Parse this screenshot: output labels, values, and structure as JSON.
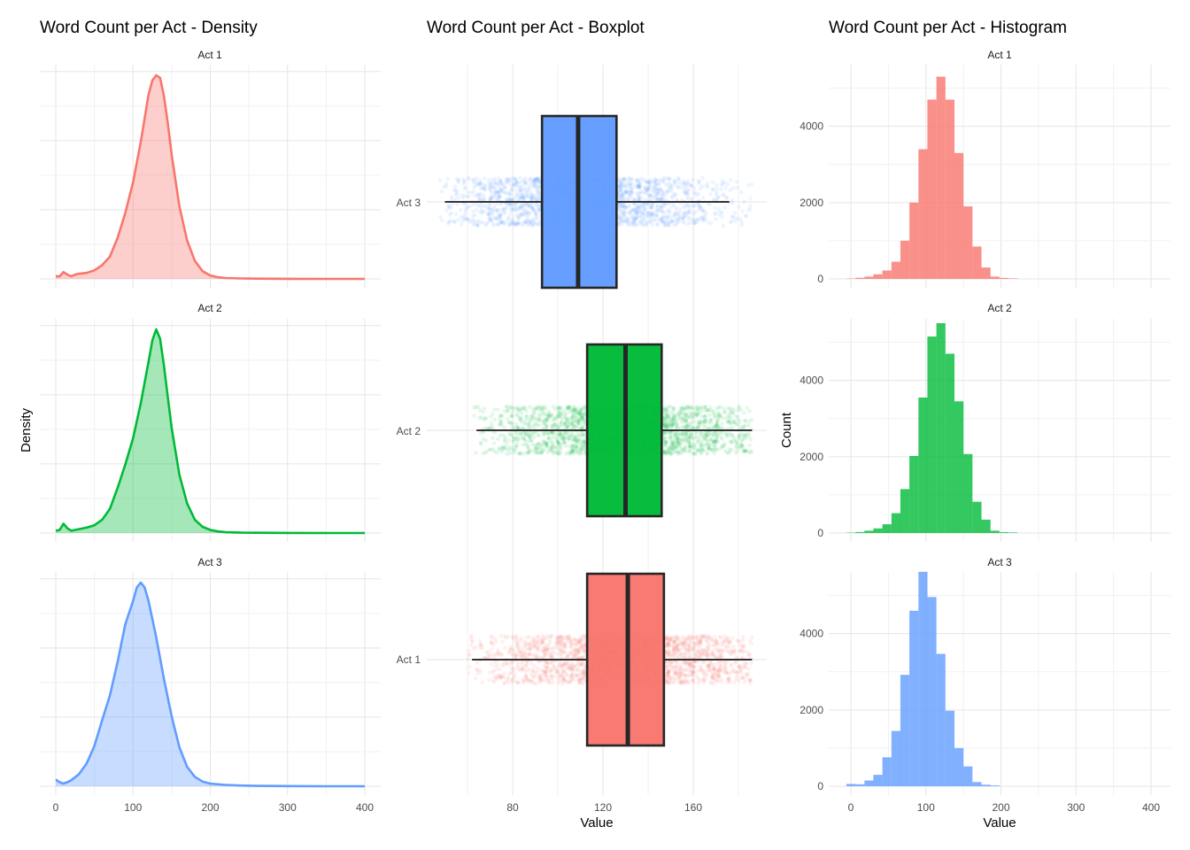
{
  "chart_data": [
    {
      "type": "area",
      "title": "Word Count per Act - Density",
      "xlabel": "",
      "ylabel": "Density",
      "xlim": [
        0,
        400
      ],
      "x_ticks": [
        0,
        100,
        200,
        300,
        400
      ],
      "y_ticks": [],
      "grid": true,
      "facets": [
        {
          "label": "Act 1",
          "color": "#F8766D",
          "x": [
            0,
            5,
            10,
            15,
            20,
            25,
            30,
            40,
            50,
            60,
            70,
            80,
            90,
            100,
            110,
            120,
            125,
            130,
            135,
            140,
            145,
            150,
            160,
            170,
            180,
            190,
            200,
            210,
            220,
            240,
            260,
            300,
            350,
            400
          ],
          "density": [
            0.0003,
            0.0003,
            0.0008,
            0.0005,
            0.0003,
            0.0005,
            0.0006,
            0.0007,
            0.001,
            0.0016,
            0.0026,
            0.0048,
            0.0077,
            0.0113,
            0.016,
            0.0215,
            0.0232,
            0.0238,
            0.0235,
            0.0214,
            0.0182,
            0.0145,
            0.0085,
            0.0045,
            0.0021,
            0.0009,
            0.0004,
            0.0002,
            0.0001,
            5e-05,
            3e-05,
            1e-05,
            0,
            0
          ]
        },
        {
          "label": "Act 2",
          "color": "#00BA38",
          "x": [
            0,
            5,
            10,
            15,
            20,
            25,
            30,
            40,
            50,
            60,
            70,
            80,
            90,
            100,
            110,
            120,
            125,
            130,
            135,
            140,
            145,
            150,
            160,
            170,
            180,
            190,
            200,
            210,
            220,
            240,
            260,
            300,
            350,
            400
          ],
          "density": [
            0.0003,
            0.0004,
            0.0012,
            0.0006,
            0.0003,
            0.0004,
            0.0005,
            0.0007,
            0.001,
            0.0017,
            0.0031,
            0.0058,
            0.0088,
            0.0122,
            0.0167,
            0.022,
            0.0248,
            0.0262,
            0.025,
            0.0216,
            0.0175,
            0.0135,
            0.0075,
            0.0038,
            0.0017,
            0.0008,
            0.0004,
            0.0002,
            0.0001,
            5e-05,
            3e-05,
            1e-05,
            0,
            0
          ]
        },
        {
          "label": "Act 3",
          "color": "#619CFF",
          "x": [
            0,
            5,
            10,
            15,
            20,
            30,
            40,
            50,
            60,
            70,
            80,
            90,
            100,
            105,
            110,
            115,
            120,
            130,
            140,
            150,
            160,
            170,
            180,
            190,
            200,
            220,
            240,
            260,
            300,
            350,
            400
          ],
          "density": [
            0.001,
            0.0006,
            0.0004,
            0.0006,
            0.0009,
            0.0018,
            0.0034,
            0.006,
            0.0098,
            0.0135,
            0.0185,
            0.0241,
            0.0276,
            0.0296,
            0.0303,
            0.0296,
            0.0276,
            0.0222,
            0.016,
            0.0104,
            0.0058,
            0.0029,
            0.0014,
            0.0007,
            0.0004,
            0.0002,
            0.0001,
            5e-05,
            2e-05,
            0,
            0
          ]
        }
      ]
    },
    {
      "type": "box",
      "title": "Word Count per Act - Boxplot",
      "xlabel": "Value",
      "ylabel": "",
      "xlim": [
        47,
        189
      ],
      "x_ticks": [
        80,
        120,
        160
      ],
      "categories": [
        "Act 3",
        "Act 2",
        "Act 1"
      ],
      "grid": true,
      "boxes": [
        {
          "label": "Act 3",
          "color": "#619CFF",
          "whisker_low": 50,
          "q1": 93,
          "median": 109,
          "q3": 126,
          "whisker_high": 176,
          "jitter_min": 47,
          "jitter_max": 186
        },
        {
          "label": "Act 2",
          "color": "#00BA38",
          "whisker_low": 64,
          "q1": 113,
          "median": 130,
          "q3": 146,
          "whisker_high": 186,
          "jitter_min": 63,
          "jitter_max": 186
        },
        {
          "label": "Act 1",
          "color": "#F8766D",
          "whisker_low": 62,
          "q1": 113,
          "median": 131,
          "q3": 147,
          "whisker_high": 186,
          "jitter_min": 60,
          "jitter_max": 186
        }
      ]
    },
    {
      "type": "bar",
      "title": "Word Count per Act - Histogram",
      "xlabel": "Value",
      "ylabel": "Count",
      "xlim": [
        -20,
        420
      ],
      "x_ticks": [
        0,
        100,
        200,
        300,
        400
      ],
      "y_ticks": [
        0,
        2000,
        4000
      ],
      "bin_width": 12,
      "bin_centers": [
        0,
        12,
        24,
        36,
        48,
        60,
        72,
        84,
        96,
        108,
        120,
        132,
        144,
        156,
        168,
        180,
        192,
        204,
        216,
        228,
        240
      ],
      "grid": true,
      "facets": [
        {
          "label": "Act 1",
          "color": "#F8766D",
          "counts": [
            10,
            30,
            60,
            120,
            220,
            450,
            1000,
            2000,
            3400,
            4700,
            5300,
            4700,
            3300,
            1900,
            850,
            300,
            60,
            25,
            15,
            0,
            0
          ]
        },
        {
          "label": "Act 2",
          "color": "#00BA38",
          "counts": [
            10,
            25,
            60,
            120,
            230,
            520,
            1150,
            2020,
            3550,
            5150,
            5500,
            4700,
            3450,
            2070,
            820,
            350,
            60,
            20,
            15,
            0,
            0
          ]
        },
        {
          "label": "Act 3",
          "color": "#619CFF",
          "counts": [
            60,
            50,
            150,
            300,
            760,
            1450,
            2920,
            4600,
            5620,
            4960,
            3470,
            1980,
            1000,
            520,
            110,
            40,
            20,
            0,
            0,
            0,
            0
          ]
        }
      ]
    }
  ]
}
